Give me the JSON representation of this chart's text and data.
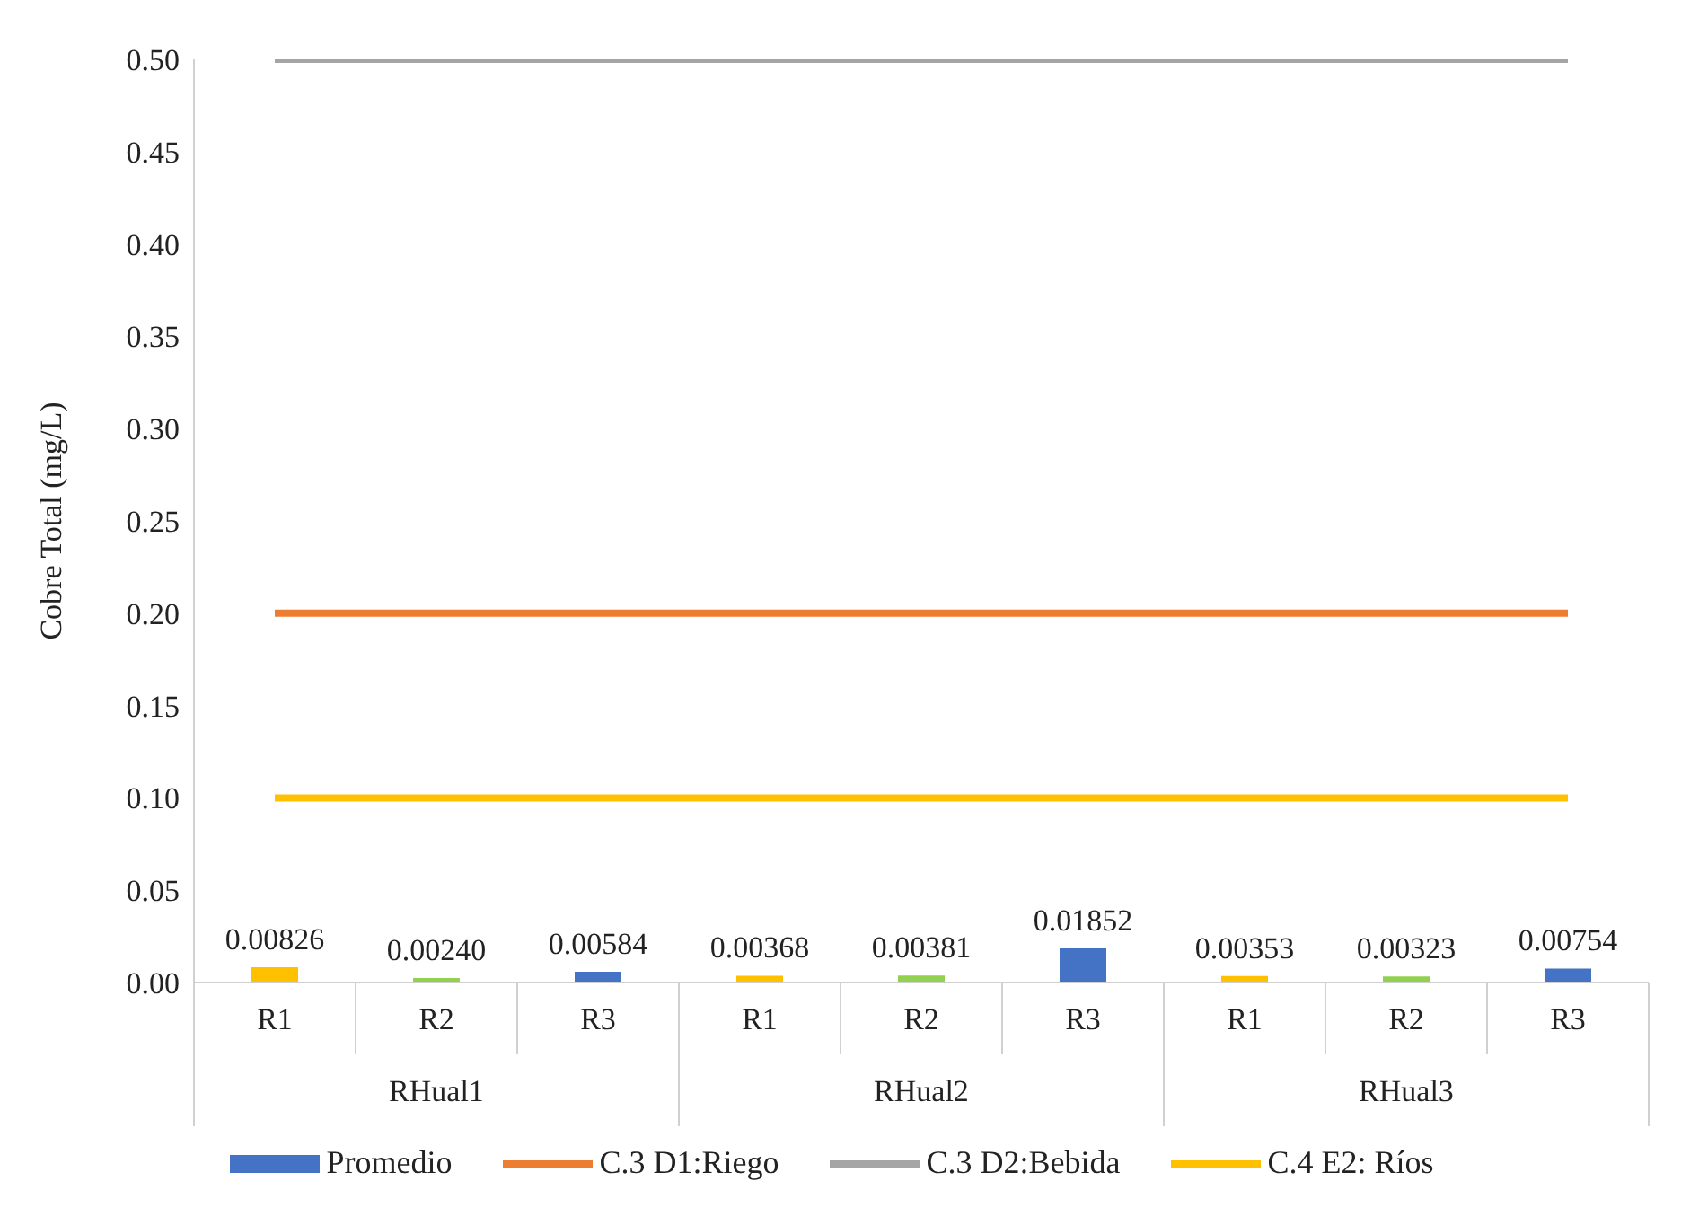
{
  "chart_data": {
    "type": "bar",
    "ylabel": "Cobre Total (mg/L)",
    "categories": [
      "R1",
      "R2",
      "R3",
      "R1",
      "R2",
      "R3",
      "R1",
      "R2",
      "R3"
    ],
    "annotations": [
      "RHual1",
      "RHual2",
      "RHual3"
    ],
    "series": [
      {
        "name": "Promedio",
        "color": "#4472c4",
        "colors": [
          "#ffc000",
          "#92d050",
          "#4472c4",
          "#ffc000",
          "#92d050",
          "#4472c4",
          "#ffc000",
          "#92d050",
          "#4472c4"
        ],
        "values": [
          0.00826,
          0.0024,
          0.00584,
          0.00368,
          0.00381,
          0.01852,
          0.00353,
          0.00323,
          0.00754
        ],
        "value_labels": [
          "0.00826",
          "0.00240",
          "0.00584",
          "0.00368",
          "0.00381",
          "0.01852",
          "0.00353",
          "0.00323",
          "0.00754"
        ]
      },
      {
        "name": "C.3 D1:Riego",
        "type": "line",
        "color": "#ed7d31",
        "values": [
          0.2,
          0.2,
          0.2,
          0.2,
          0.2,
          0.2,
          0.2,
          0.2,
          0.2
        ]
      },
      {
        "name": "C.3 D2:Bebida",
        "type": "line",
        "color": "#a5a5a5",
        "values": [
          0.5,
          0.5,
          0.5,
          0.5,
          0.5,
          0.5,
          0.5,
          0.5,
          0.5
        ]
      },
      {
        "name": "C.4 E2: Ríos",
        "type": "line",
        "color": "#ffc000",
        "values": [
          0.1,
          0.1,
          0.1,
          0.1,
          0.1,
          0.1,
          0.1,
          0.1,
          0.1
        ]
      }
    ],
    "ylim": [
      0,
      0.5
    ],
    "yticks": [
      {
        "value": 0,
        "label": "0.00"
      },
      {
        "value": 0.05,
        "label": "0.05"
      },
      {
        "value": 0.1,
        "label": "0.10"
      },
      {
        "value": 0.15,
        "label": "0.15"
      },
      {
        "value": 0.2,
        "label": "0.20"
      },
      {
        "value": 0.25,
        "label": "0.25"
      },
      {
        "value": 0.3,
        "label": "0.30"
      },
      {
        "value": 0.35,
        "label": "0.35"
      },
      {
        "value": 0.4,
        "label": "0.40"
      },
      {
        "value": 0.45,
        "label": "0.45"
      },
      {
        "value": 0.5,
        "label": "0.50"
      }
    ],
    "grid": false,
    "legend": "bottom"
  }
}
